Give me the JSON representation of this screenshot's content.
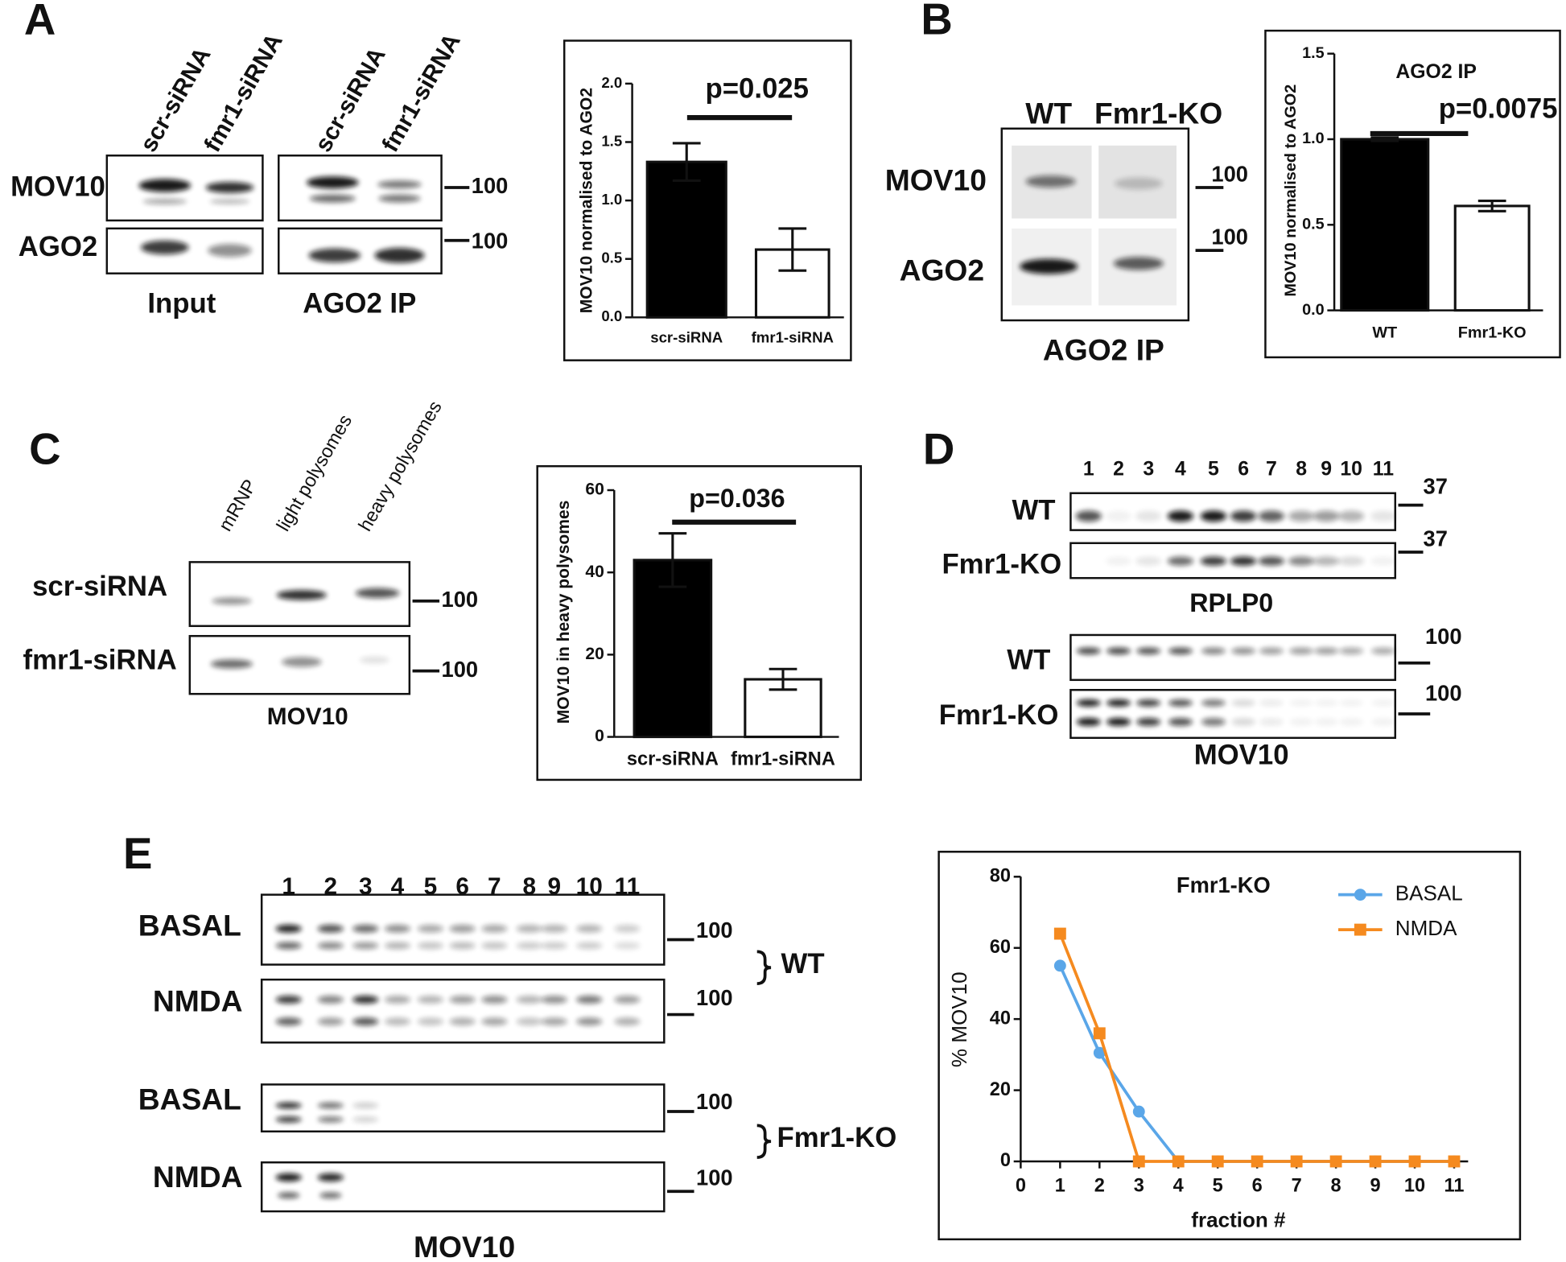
{
  "panels": {
    "letters": [
      "A",
      "B",
      "C",
      "D",
      "E"
    ]
  },
  "blots": {
    "A": {
      "lanes": [
        "scr-siRNA",
        "fmr1-siRNA",
        "scr-siRNA",
        "fmr1-siRNA"
      ],
      "rows": [
        "MOV10",
        "AGO2"
      ],
      "markers": [
        "100",
        "100"
      ],
      "captions": [
        "Input",
        "AGO2 IP"
      ]
    },
    "B": {
      "lanes": [
        "WT",
        "Fmr1-KO"
      ],
      "rows": [
        "MOV10",
        "AGO2"
      ],
      "markers": [
        "100",
        "100"
      ],
      "caption": "AGO2 IP"
    },
    "C": {
      "lanes": [
        "mRNP",
        "light polysomes",
        "heavy polysomes"
      ],
      "rows": [
        "scr-siRNA",
        "fmr1-siRNA"
      ],
      "markers": [
        "100",
        "100"
      ],
      "caption": "MOV10"
    },
    "D": {
      "fractions": [
        "1",
        "2",
        "3",
        "4",
        "5",
        "6",
        "7",
        "8",
        "9",
        "10",
        "11"
      ],
      "rows": [
        "WT",
        "Fmr1-KO",
        "WT",
        "Fmr1-KO"
      ],
      "markers": [
        "37",
        "37",
        "100",
        "100"
      ],
      "captions": [
        "RPLP0",
        "MOV10"
      ]
    },
    "E": {
      "fractions": [
        "1",
        "2",
        "3",
        "4",
        "5",
        "6",
        "7",
        "8",
        "9",
        "10",
        "11"
      ],
      "rows": [
        "BASAL",
        "NMDA",
        "BASAL",
        "NMDA"
      ],
      "markers": [
        "100",
        "100",
        "100",
        "100"
      ],
      "groups": [
        "WT",
        "Fmr1-KO"
      ],
      "caption": "MOV10"
    }
  },
  "chart_data": [
    {
      "type": "bar",
      "annotation": "p=0.025",
      "y_label": "MOV10 normalised to AGO2",
      "categories": [
        "scr-siRNA",
        "fmr1-siRNA"
      ],
      "values": [
        1.33,
        0.58
      ],
      "errors": [
        0.16,
        0.18
      ],
      "colors": [
        "#000000",
        "#ffffff"
      ],
      "ylim": [
        0,
        2
      ],
      "yticks": [
        {
          "value": 0,
          "label": "0.0"
        },
        {
          "value": 0.5,
          "label": "0.5"
        },
        {
          "value": 1,
          "label": "1.0"
        },
        {
          "value": 1.5,
          "label": "1.5"
        },
        {
          "value": 2,
          "label": "2.0"
        }
      ]
    },
    {
      "type": "bar",
      "title": "AGO2 IP",
      "annotation": "p=0.0075",
      "y_label": "MOV10 normalised to AGO2",
      "categories": [
        "WT",
        "Fmr1-KO"
      ],
      "values": [
        1.0,
        0.61
      ],
      "errors": [
        0.01,
        0.03
      ],
      "colors": [
        "#000000",
        "#ffffff"
      ],
      "ylim": [
        0,
        1.5
      ],
      "yticks": [
        {
          "value": 0,
          "label": "0.0"
        },
        {
          "value": 0.5,
          "label": "0.5"
        },
        {
          "value": 1,
          "label": "1.0"
        },
        {
          "value": 1.5,
          "label": "1.5"
        }
      ]
    },
    {
      "type": "bar",
      "annotation": "p=0.036",
      "y_label": "MOV10 in heavy polysomes",
      "categories": [
        "scr-siRNA",
        "fmr1-siRNA"
      ],
      "values": [
        43,
        14
      ],
      "errors": [
        6.5,
        2.5
      ],
      "colors": [
        "#000000",
        "#ffffff"
      ],
      "ylim": [
        0,
        60
      ],
      "yticks": [
        0,
        20,
        40,
        60
      ]
    },
    {
      "type": "line",
      "title": "Fmr1-KO",
      "x_label": "fraction #",
      "y_label": "% MOV10",
      "x": [
        1,
        2,
        3,
        4,
        5,
        6,
        7,
        8,
        9,
        10,
        11
      ],
      "series": [
        {
          "name": "BASAL",
          "color": "#5aa6e8",
          "marker": "circle",
          "values": [
            55,
            30.5,
            14,
            0,
            0,
            0,
            0,
            0,
            0,
            0,
            0
          ]
        },
        {
          "name": "NMDA",
          "color": "#f58a1f",
          "marker": "square",
          "values": [
            64,
            36,
            0,
            0,
            0,
            0,
            0,
            0,
            0,
            0,
            0
          ]
        }
      ],
      "xlim": [
        0,
        11
      ],
      "xticks": [
        0,
        1,
        2,
        3,
        4,
        5,
        6,
        7,
        8,
        9,
        10,
        11
      ],
      "ylim": [
        0,
        80
      ],
      "yticks": [
        0,
        20,
        40,
        60,
        80
      ],
      "legend": "upper right"
    }
  ]
}
